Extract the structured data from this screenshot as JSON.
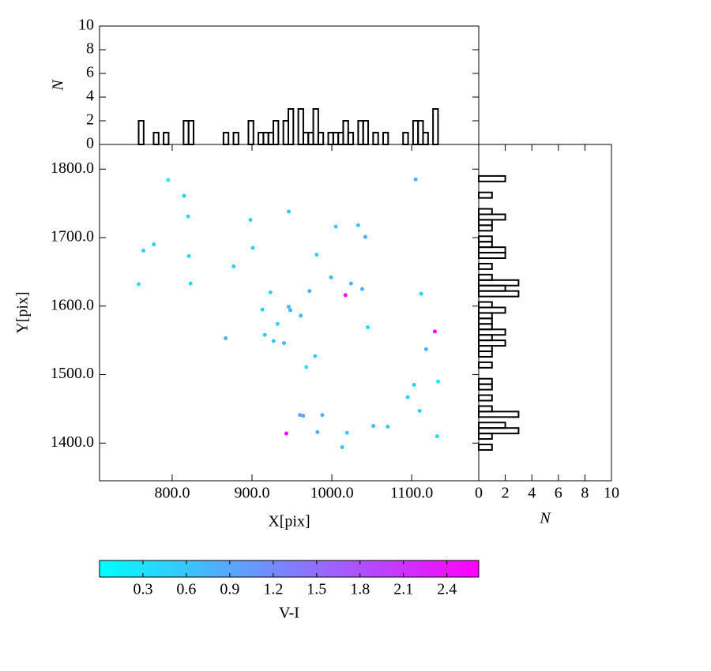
{
  "chart_data": [
    {
      "type": "scatter",
      "x": [
        795,
        815,
        820,
        821,
        823,
        758,
        764,
        777,
        877,
        898,
        901,
        867,
        946,
        923,
        913,
        932,
        916,
        927,
        940,
        946,
        948,
        961,
        972,
        981,
        999,
        1005,
        1033,
        1042,
        1024,
        1038,
        1017,
        1045,
        979,
        968,
        1105,
        1112,
        1129,
        1118,
        1133,
        1103,
        1095,
        1110,
        960,
        964,
        988,
        943,
        982,
        1019,
        1013,
        1052,
        1070,
        1132
      ],
      "y": [
        1784,
        1761,
        1731,
        1673,
        1633,
        1632,
        1681,
        1690,
        1658,
        1726,
        1685,
        1553,
        1738,
        1620,
        1595,
        1574,
        1558,
        1549,
        1546,
        1599,
        1594,
        1586,
        1622,
        1675,
        1642,
        1716,
        1718,
        1701,
        1633,
        1625,
        1616,
        1569,
        1527,
        1511,
        1785,
        1618,
        1563,
        1537,
        1490,
        1485,
        1467,
        1447,
        1441,
        1440,
        1441,
        1414,
        1416,
        1415,
        1394,
        1425,
        1424,
        1410
      ],
      "c": [
        0.1,
        0.5,
        0.4,
        0.4,
        0.4,
        0.3,
        0.5,
        0.5,
        0.5,
        0.5,
        0.5,
        0.8,
        0.6,
        0.5,
        0.5,
        0.5,
        0.6,
        0.6,
        0.7,
        0.7,
        0.8,
        0.7,
        0.8,
        0.5,
        0.7,
        0.5,
        0.6,
        0.9,
        0.8,
        0.8,
        2.5,
        0.4,
        0.5,
        0.2,
        0.8,
        0.5,
        2.6,
        0.8,
        0.2,
        0.5,
        0.5,
        0.5,
        0.9,
        0.9,
        0.8,
        2.5,
        0.8,
        0.5,
        0.7,
        0.7,
        0.6,
        0.4
      ],
      "xlim": [
        709,
        1184
      ],
      "ylim": [
        1345,
        1836
      ],
      "xticks": [
        {
          "value": 800,
          "label": "800.0"
        },
        {
          "value": 900,
          "label": "900.0"
        },
        {
          "value": 1000,
          "label": "1000.0"
        },
        {
          "value": 1100,
          "label": "1100.0"
        }
      ],
      "yticks": [
        {
          "value": 1400,
          "label": "1400.0"
        },
        {
          "value": 1500,
          "label": "1500.0"
        },
        {
          "value": 1600,
          "label": "1600.0"
        },
        {
          "value": 1700,
          "label": "1700.0"
        },
        {
          "value": 1800,
          "label": "1800.0"
        }
      ],
      "xlabel": "X[pix]",
      "ylabel": "Y[pix]",
      "cmap": [
        "#00ffff",
        "#ff00ff"
      ],
      "clim": [
        0,
        2.62
      ],
      "cticks": [
        0.3,
        0.6,
        0.9,
        1.2,
        1.5,
        1.8,
        2.1,
        2.4
      ],
      "clabel": "V-I"
    },
    {
      "type": "histogram",
      "orientation": "vertical",
      "color": "#000000",
      "bins": [
        758,
        764.25,
        770.5,
        776.75,
        783,
        789.25,
        795.5,
        801.75,
        808,
        814.25,
        820.5,
        826.75,
        833,
        839.25,
        845.5,
        851.75,
        858,
        864.25,
        870.5,
        876.75,
        883,
        889.25,
        895.5,
        901.75,
        908,
        914.25,
        920.5,
        926.75,
        933,
        939.25,
        945.5,
        951.75,
        958,
        964.25,
        970.5,
        976.75,
        983,
        989.25,
        995.5,
        1001.75,
        1008,
        1014.25,
        1020.5,
        1026.75,
        1033,
        1039.25,
        1045.5,
        1051.75,
        1058,
        1064.25,
        1070.5,
        1076.75,
        1083,
        1089.25,
        1095.5,
        1101.75,
        1108,
        1114.25,
        1120.5,
        1126.75,
        1133
      ],
      "counts": [
        2,
        0,
        0,
        1,
        0,
        1,
        0,
        0,
        0,
        2,
        2,
        0,
        0,
        0,
        0,
        0,
        0,
        1,
        0,
        1,
        0,
        0,
        2,
        0,
        1,
        1,
        1,
        2,
        0,
        2,
        3,
        0,
        3,
        1,
        1,
        3,
        1,
        0,
        1,
        1,
        1,
        2,
        1,
        0,
        2,
        2,
        0,
        1,
        0,
        1,
        0,
        0,
        0,
        1,
        0,
        2,
        2,
        1,
        0,
        3
      ],
      "xlim": [
        709,
        1184
      ],
      "ylim": [
        0,
        10
      ],
      "yticks": [
        0,
        2,
        4,
        6,
        8,
        10
      ],
      "ylabel": "N"
    },
    {
      "type": "histogram",
      "orientation": "horizontal",
      "color": "#000000",
      "bins": [
        1390,
        1398,
        1406,
        1414,
        1422,
        1430,
        1438,
        1446,
        1454,
        1462,
        1470,
        1478,
        1486,
        1494,
        1502,
        1510,
        1518,
        1526,
        1534,
        1542,
        1550,
        1558,
        1566,
        1574,
        1582,
        1590,
        1598,
        1606,
        1614,
        1622,
        1630,
        1638,
        1646,
        1654,
        1662,
        1670,
        1678,
        1686,
        1694,
        1702,
        1710,
        1718,
        1726,
        1734,
        1742,
        1750,
        1758,
        1766,
        1774,
        1782,
        1790
      ],
      "counts": [
        1,
        0,
        1,
        3,
        2,
        0,
        3,
        1,
        0,
        1,
        0,
        1,
        1,
        0,
        0,
        1,
        0,
        1,
        1,
        2,
        1,
        2,
        1,
        1,
        1,
        2,
        1,
        0,
        3,
        2,
        3,
        1,
        0,
        1,
        0,
        2,
        2,
        1,
        1,
        0,
        1,
        1,
        2,
        1,
        0,
        0,
        1,
        0,
        0,
        2
      ],
      "ylim": [
        1345,
        1836
      ],
      "xlim": [
        0,
        10
      ],
      "xticks": [
        0,
        2,
        4,
        6,
        8,
        10
      ],
      "xlabel": "N"
    }
  ]
}
